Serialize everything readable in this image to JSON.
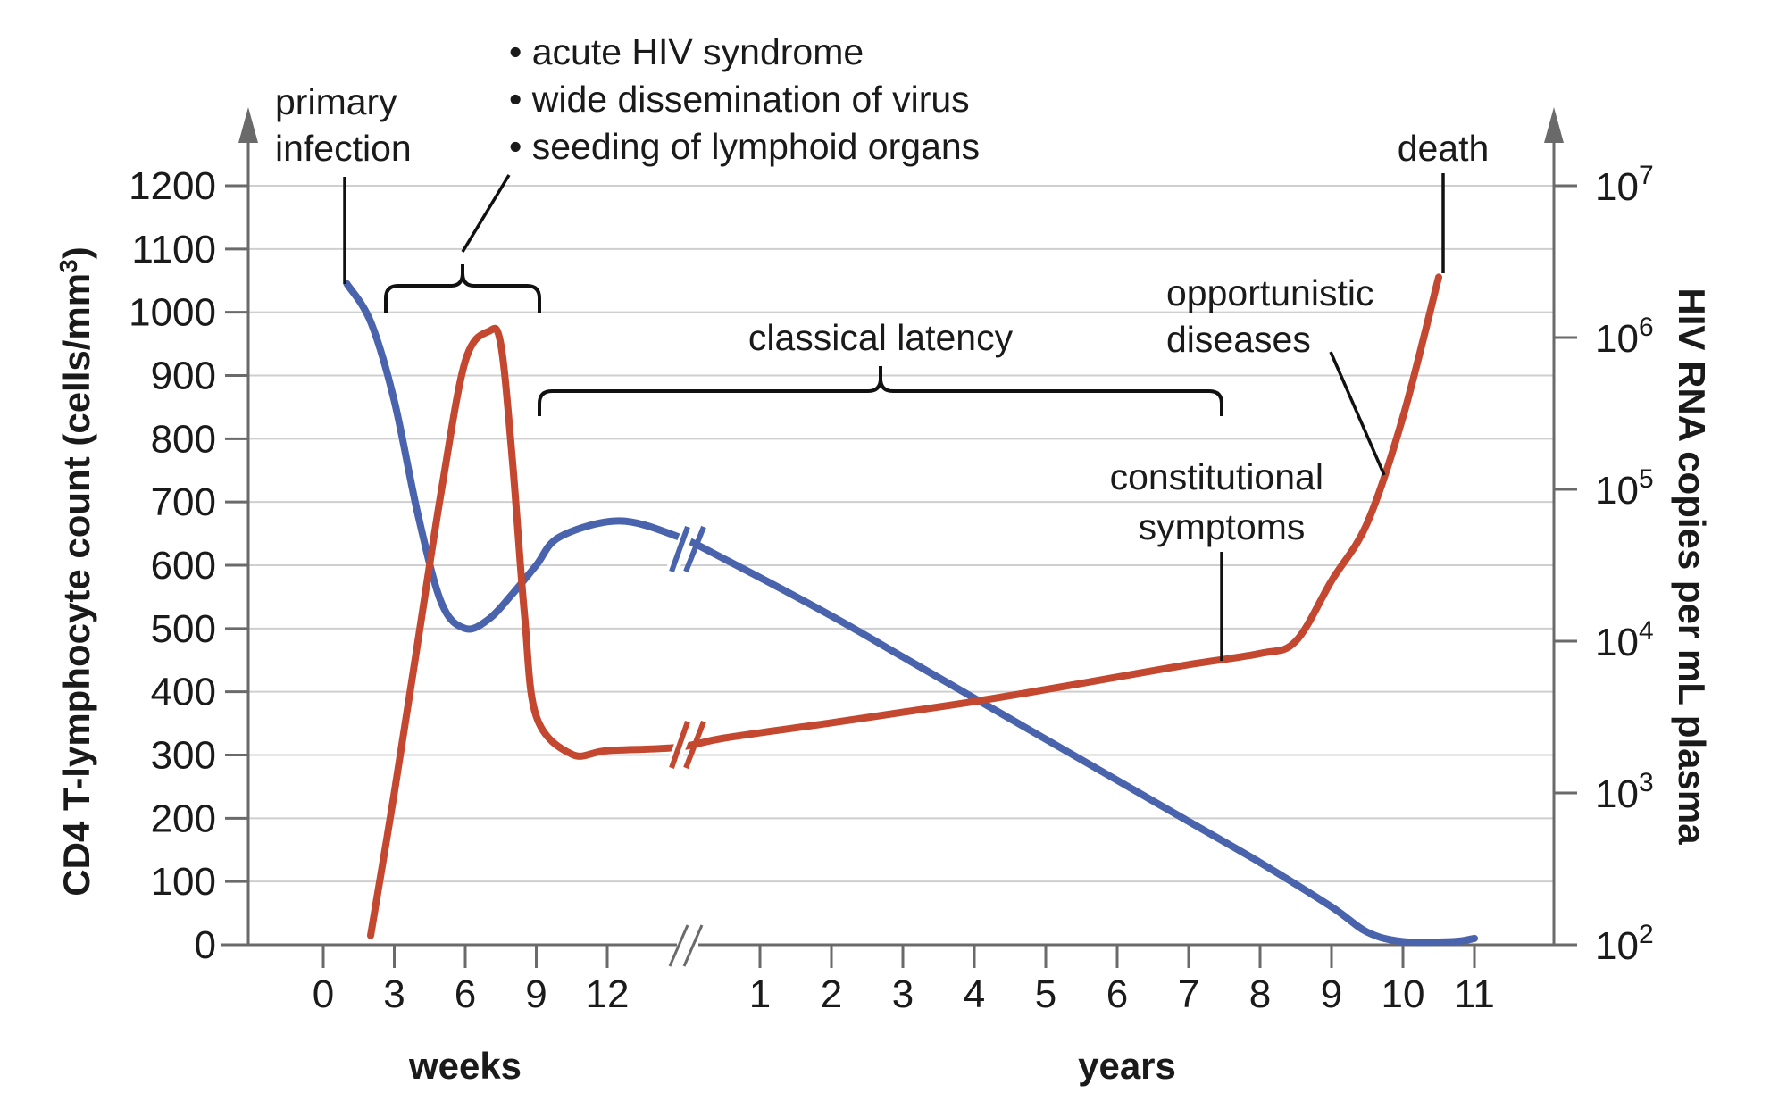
{
  "chart_data": {
    "type": "line",
    "left_axis": {
      "title": "CD4 T-lymphocyte count (cells/mm",
      "title_sup": "3",
      "title_end": ")",
      "ylim": [
        0,
        1200
      ],
      "ticks": [
        "0",
        "100",
        "200",
        "300",
        "400",
        "500",
        "600",
        "700",
        "800",
        "900",
        "1000",
        "1100",
        "1200"
      ]
    },
    "right_axis": {
      "title": "HIV RNA copies per mL plasma",
      "scale": "log",
      "ylim": [
        100,
        10000000
      ],
      "ticks": [
        {
          "base": "10",
          "exp": "2"
        },
        {
          "base": "10",
          "exp": "3"
        },
        {
          "base": "10",
          "exp": "4"
        },
        {
          "base": "10",
          "exp": "5"
        },
        {
          "base": "10",
          "exp": "6"
        },
        {
          "base": "10",
          "exp": "7"
        }
      ]
    },
    "x_axis": {
      "weeks_label": "weeks",
      "years_label": "years",
      "week_ticks": [
        "0",
        "3",
        "6",
        "9",
        "12"
      ],
      "year_ticks": [
        "1",
        "2",
        "3",
        "4",
        "5",
        "6",
        "7",
        "8",
        "9",
        "10",
        "11"
      ],
      "break": true
    },
    "series": [
      {
        "color": "#4a63ad",
        "axis": "left",
        "points": [
          {
            "x_weeks": 1,
            "y": 1045
          },
          {
            "x_weeks": 2,
            "y": 985
          },
          {
            "x_weeks": 3,
            "y": 860
          },
          {
            "x_weeks": 4,
            "y": 680
          },
          {
            "x_weeks": 5,
            "y": 540
          },
          {
            "x_weeks": 6,
            "y": 500
          },
          {
            "x_weeks": 7,
            "y": 515
          },
          {
            "x_weeks": 8,
            "y": 555
          },
          {
            "x_weeks": 9,
            "y": 600
          },
          {
            "x_weeks": 10,
            "y": 645
          },
          {
            "x_weeks": 12.5,
            "y": 670
          },
          {
            "x_weeks": 15,
            "y": 645
          },
          {
            "x_years": 0.5,
            "y": 610
          },
          {
            "x_years": 2,
            "y": 520
          },
          {
            "x_years": 3,
            "y": 455
          },
          {
            "x_years": 4,
            "y": 390
          },
          {
            "x_years": 5,
            "y": 325
          },
          {
            "x_years": 6,
            "y": 260
          },
          {
            "x_years": 7,
            "y": 195
          },
          {
            "x_years": 8,
            "y": 130
          },
          {
            "x_years": 9,
            "y": 60
          },
          {
            "x_years": 9.5,
            "y": 20
          },
          {
            "x_years": 10,
            "y": 5
          },
          {
            "x_years": 10.7,
            "y": 5
          },
          {
            "x_years": 11,
            "y": 10
          }
        ]
      },
      {
        "color": "#c4472f",
        "axis": "right",
        "points": [
          {
            "x_weeks": 2,
            "y": 115
          },
          {
            "x_weeks": 3,
            "y": 1000
          },
          {
            "x_weeks": 4,
            "y": 10000
          },
          {
            "x_weeks": 5,
            "y": 100000
          },
          {
            "x_weeks": 6,
            "y": 700000
          },
          {
            "x_weeks": 7,
            "y": 1100000
          },
          {
            "x_weeks": 7.5,
            "y": 900000
          },
          {
            "x_weeks": 8,
            "y": 150000
          },
          {
            "x_weeks": 8.5,
            "y": 15000
          },
          {
            "x_weeks": 9,
            "y": 3200
          },
          {
            "x_weeks": 10.5,
            "y": 1800
          },
          {
            "x_weeks": 12,
            "y": 1900
          },
          {
            "x_weeks": 15,
            "y": 2000
          },
          {
            "x_years": 0.5,
            "y": 2300
          },
          {
            "x_years": 2,
            "y": 2900
          },
          {
            "x_years": 3,
            "y": 3400
          },
          {
            "x_years": 4,
            "y": 4000
          },
          {
            "x_years": 5,
            "y": 4800
          },
          {
            "x_years": 6,
            "y": 5800
          },
          {
            "x_years": 7,
            "y": 7000
          },
          {
            "x_years": 8,
            "y": 8300
          },
          {
            "x_years": 8.5,
            "y": 10000
          },
          {
            "x_years": 9,
            "y": 25000
          },
          {
            "x_years": 9.5,
            "y": 60000
          },
          {
            "x_years": 10,
            "y": 300000
          },
          {
            "x_years": 10.5,
            "y": 2500000
          }
        ]
      }
    ],
    "annotations": {
      "primary_infection": [
        "primary",
        "infection"
      ],
      "acute_bullets": [
        "• acute HIV syndrome",
        "• wide dissemination of virus",
        "• seeding of lymphoid organs"
      ],
      "latency": "classical latency",
      "opportunistic": [
        "opportunistic",
        "diseases"
      ],
      "constitutional": [
        "constitutional",
        "symptoms"
      ],
      "death": "death"
    },
    "grid": true
  }
}
